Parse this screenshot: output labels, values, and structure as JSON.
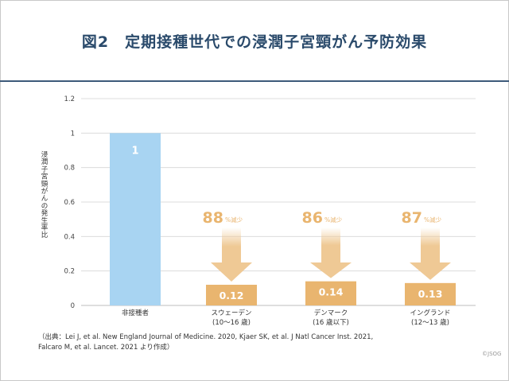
{
  "title": "図2　定期接種世代での浸潤子宮頸がん予防効果",
  "source_lines": [
    "（出典：Lei J, et al. New England Journal of Medicine. 2020, Kjaer SK, et al. J Natl Cancer Inst. 2021,",
    "Falcaro M, et al. Lancet. 2021 より作成）"
  ],
  "copyright": "©JSOG",
  "colors": {
    "title": "#2a4a6b",
    "rule": "#3d5a7a",
    "bar_unvaccinated": "#a8d4f2",
    "bar_vaccinated": "#e9b56f",
    "arrow": "#efc995",
    "reduction_text": "#e9b56f"
  },
  "chart_data": {
    "type": "bar",
    "ylabel": "浸潤子宮頸がんの発生率比",
    "ylim": [
      0,
      1.2
    ],
    "yticks": [
      "0",
      "0.2",
      "0.4",
      "0.6",
      "0.8",
      "1",
      "1.2"
    ],
    "grid": true,
    "categories": [
      {
        "line1": "非接種者",
        "line2": ""
      },
      {
        "line1": "スウェーデン",
        "line2": "(10～16 歳)"
      },
      {
        "line1": "デンマーク",
        "line2": "(16 歳以下)"
      },
      {
        "line1": "イングランド",
        "line2": "(12～13 歳)"
      }
    ],
    "values": [
      1,
      0.12,
      0.14,
      0.13
    ],
    "value_labels": [
      "1",
      "0.12",
      "0.14",
      "0.13"
    ],
    "reductions": [
      null,
      {
        "number": "88",
        "unit": "%減少"
      },
      {
        "number": "86",
        "unit": "%減少"
      },
      {
        "number": "87",
        "unit": "%減少"
      }
    ]
  }
}
